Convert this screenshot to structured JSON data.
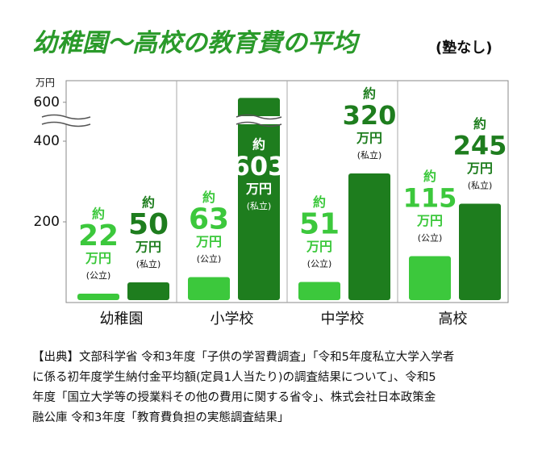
{
  "chart_data": {
    "type": "bar",
    "title": "幼稚園〜高校の教育費の平均",
    "subtitle": "(塾なし)",
    "y_unit": "万円",
    "value_prefix": "約",
    "categories": [
      "幼稚園",
      "小学校",
      "中学校",
      "高校"
    ],
    "series": [
      {
        "name": "(公立)",
        "color": "#3cc83c",
        "values": [
          22,
          63,
          51,
          115
        ]
      },
      {
        "name": "(私立)",
        "color": "#1e7d1e",
        "values": [
          50,
          603,
          320,
          245
        ]
      }
    ],
    "ylim": [
      0,
      615
    ],
    "axis_break": [
      450,
      587
    ],
    "yticks": [
      200,
      400,
      600
    ],
    "source": [
      "【出典】文部科学省 令和3年度「子供の学習費調査」「令和5年度私立大学入学者",
      "に係る初年度学生納付金平均額(定員1人当たり)の調査結果について」、令和5",
      "年度「国立大学等の授業料その他の費用に関する省令」、株式会社日本政策金",
      "融公庫 令和3年度「教育費負担の実態調査結果」"
    ]
  }
}
